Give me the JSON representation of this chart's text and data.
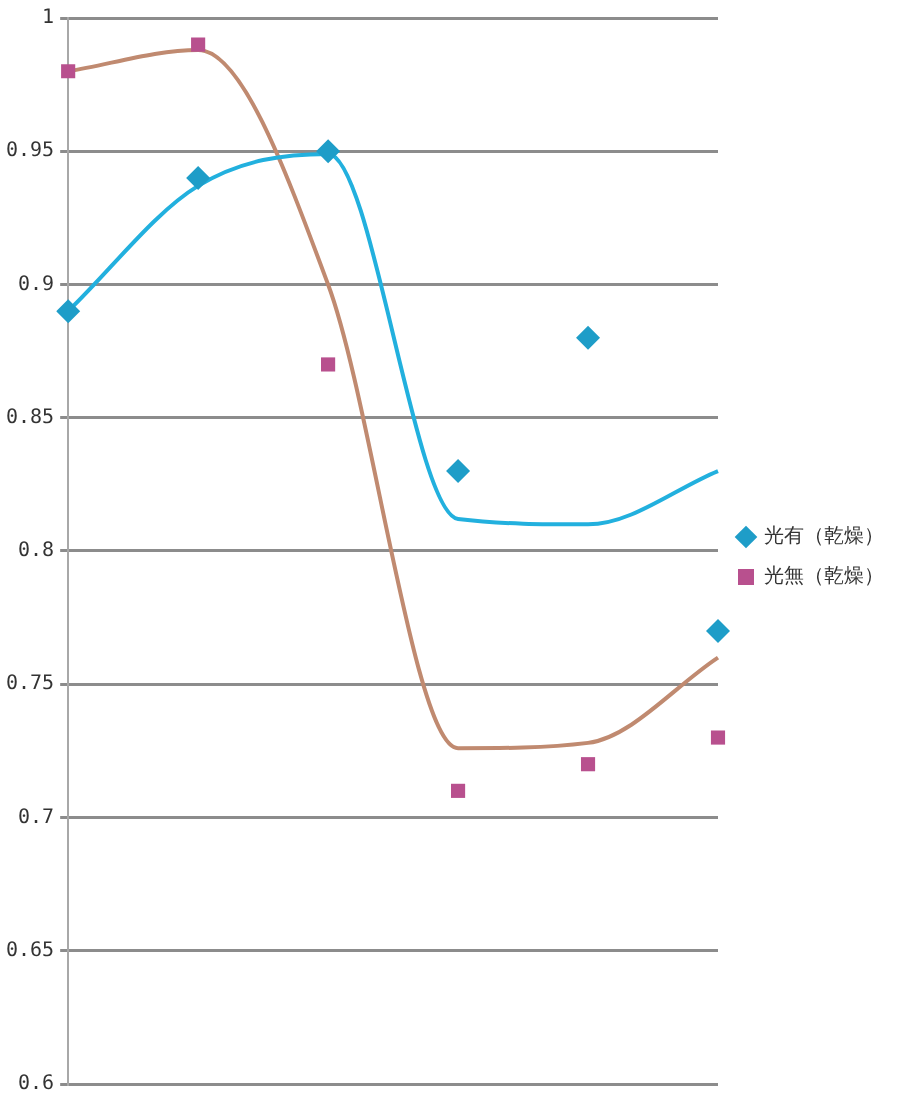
{
  "chart_data": {
    "type": "scatter",
    "categories": [
      null,
      null,
      null,
      null,
      null,
      null
    ],
    "ylim": [
      0.6,
      1
    ],
    "yticks": [
      0.6,
      0.65,
      0.7,
      0.75,
      0.8,
      0.85,
      0.9,
      0.95,
      1
    ],
    "grid": "y",
    "legend": "right",
    "tick_labels": "y",
    "series": [
      {
        "name": "光有（乾燥）",
        "type": "scatter",
        "marker": "diamond",
        "color": "#1e9dc8",
        "values": [
          0.89,
          0.94,
          0.95,
          0.83,
          0.88,
          0.77
        ]
      },
      {
        "name": "光無（乾燥）",
        "type": "scatter",
        "marker": "square",
        "color": "#b8508e",
        "values": [
          0.98,
          0.99,
          0.87,
          0.71,
          0.72,
          0.73
        ]
      },
      {
        "type": "line",
        "marker": "none",
        "color": "#22b0de",
        "values": [
          0.89,
          0.937,
          0.949,
          0.812,
          0.81,
          0.83
        ]
      },
      {
        "type": "line",
        "marker": "none",
        "color": "#c08a70",
        "values": [
          0.98,
          0.988,
          0.9,
          0.726,
          0.728,
          0.76
        ]
      }
    ]
  }
}
